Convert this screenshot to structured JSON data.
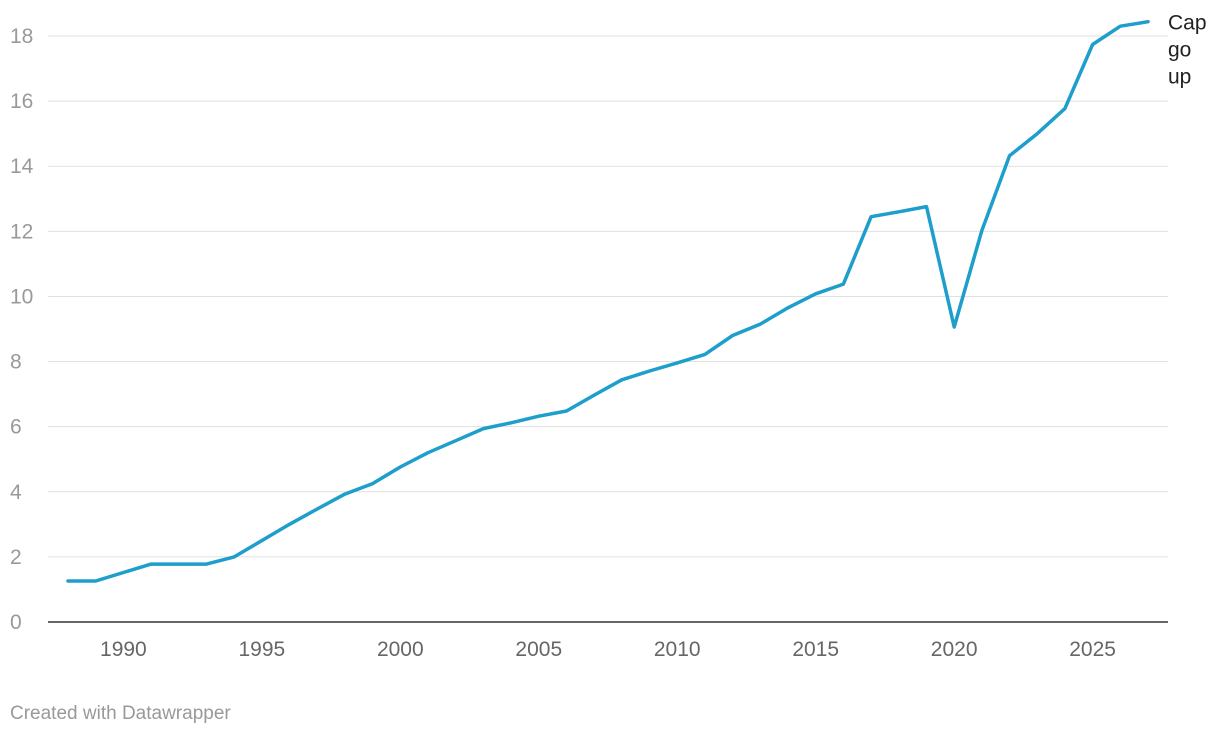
{
  "chart_data": {
    "type": "line",
    "title": "",
    "xlabel": "",
    "ylabel": "",
    "xlim": [
      1987.5,
      2027.8
    ],
    "ylim": [
      0,
      18
    ],
    "y_ticks": [
      0,
      2,
      4,
      6,
      8,
      10,
      12,
      14,
      16,
      18
    ],
    "x_ticks": [
      1990,
      1995,
      2000,
      2005,
      2010,
      2015,
      2020,
      2025
    ],
    "grid": true,
    "series": [
      {
        "name": "Cap go up",
        "label_lines": [
          "Cap",
          "go",
          "up"
        ],
        "color": "#1d9ecb",
        "x": [
          1988,
          1989,
          1990,
          1991,
          1992,
          1993,
          1994,
          1995,
          1996,
          1997,
          1998,
          1999,
          2000,
          2001,
          2002,
          2003,
          2004,
          2005,
          2006,
          2007,
          2008,
          2009,
          2010,
          2011,
          2012,
          2013,
          2014,
          2015,
          2016,
          2017,
          2018,
          2019,
          2020,
          2021,
          2022,
          2023,
          2024,
          2025,
          2026,
          2027
        ],
        "values": [
          1.26,
          1.26,
          1.52,
          1.78,
          1.78,
          1.78,
          2.0,
          2.5,
          3.0,
          3.47,
          3.93,
          4.25,
          4.76,
          5.2,
          5.57,
          5.94,
          6.12,
          6.32,
          6.48,
          6.97,
          7.44,
          7.71,
          7.96,
          8.22,
          8.8,
          9.15,
          9.65,
          10.08,
          10.38,
          12.45,
          12.6,
          12.76,
          9.06,
          12.02,
          14.32,
          15.0,
          15.77,
          17.74,
          18.3,
          18.44
        ]
      }
    ]
  },
  "footer": {
    "credit": "Created with Datawrapper"
  }
}
